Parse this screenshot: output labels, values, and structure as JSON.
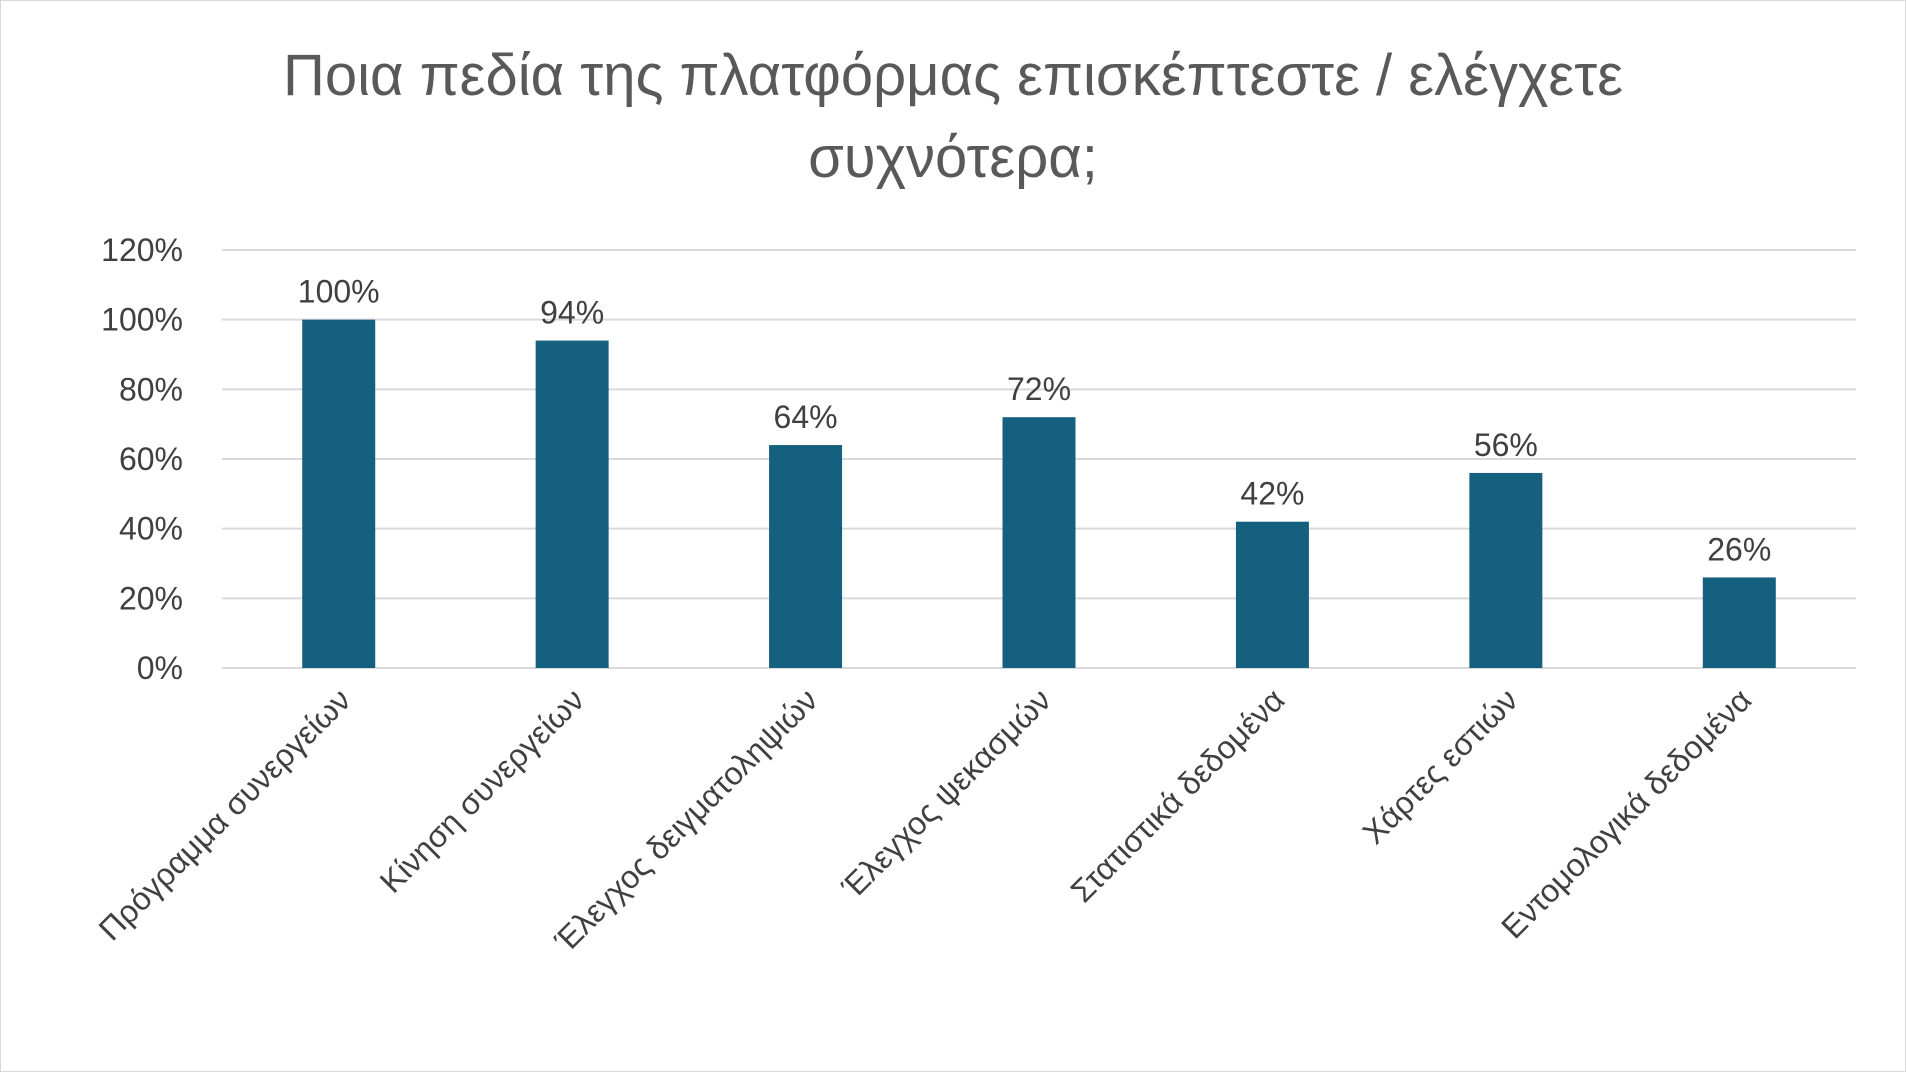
{
  "chart_data": {
    "type": "bar",
    "title": "Ποια πεδία της πλατφόρμας επισκέπτεστε / ελέγχετε συχνότερα;",
    "title_lines": [
      "Ποια πεδία της πλατφόρμας επισκέπτεστε / ελέγχετε",
      "συχνότερα;"
    ],
    "categories": [
      "Πρόγραμμα συνεργείων",
      "Κίνηση συνεργείων",
      "Έλεγχος δειγματοληψιών",
      "Έλεγχος ψεκασμών",
      "Στατιστικά δεδομένα",
      "Χάρτες εστιών",
      "Εντομολογικά δεδομένα"
    ],
    "values": [
      1.0,
      0.94,
      0.64,
      0.72,
      0.42,
      0.56,
      0.26
    ],
    "data_labels": [
      "100%",
      "94%",
      "64%",
      "72%",
      "42%",
      "56%",
      "26%"
    ],
    "ylim": [
      0,
      1.2
    ],
    "y_ticks": [
      0,
      0.2,
      0.4,
      0.6,
      0.8,
      1.0,
      1.2
    ],
    "y_tick_labels": [
      "0%",
      "20%",
      "40%",
      "60%",
      "80%",
      "100%",
      "120%"
    ],
    "xlabel": "",
    "ylabel": "",
    "grid": true,
    "legend": "none",
    "colors": {
      "bar": "#16607f",
      "gridline": "#d9d9d9",
      "text": "#404040",
      "title": "#595959"
    }
  }
}
